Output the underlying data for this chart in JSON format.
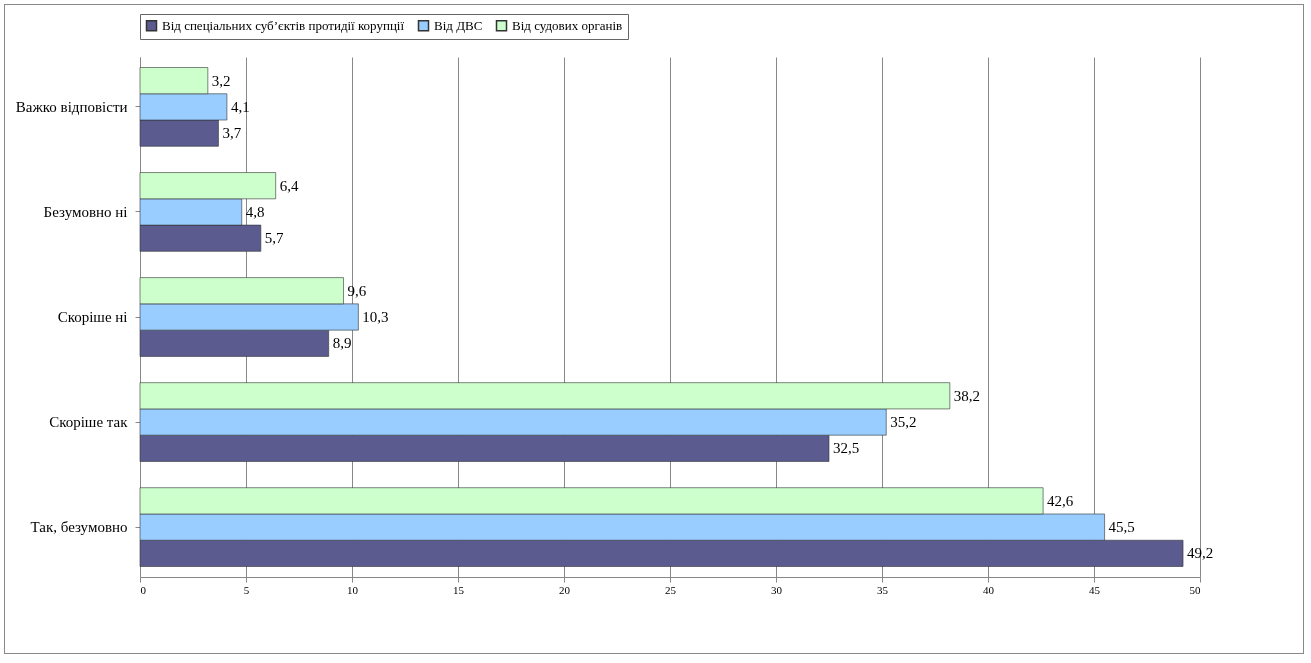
{
  "chart_data": {
    "type": "bar",
    "orientation": "horizontal",
    "categories": [
      "Важко відповісти",
      "Безумовно ні",
      "Скоріше ні",
      "Скоріше так",
      "Так, безумовно"
    ],
    "series": [
      {
        "name": "Від спеціальних суб’єктів протидії корупції",
        "color": "#5b5b8f",
        "values": [
          3.7,
          5.7,
          8.9,
          32.5,
          49.2
        ],
        "value_labels": [
          "3,7",
          "5,7",
          "8,9",
          "32,5",
          "49,2"
        ]
      },
      {
        "name": "Від ДВС",
        "color": "#99ccff",
        "values": [
          4.1,
          4.8,
          10.3,
          35.2,
          45.5
        ],
        "value_labels": [
          "4,1",
          "4,8",
          "10,3",
          "35,2",
          "45,5"
        ]
      },
      {
        "name": "Від судових органів",
        "color": "#ccffcc",
        "values": [
          3.2,
          6.4,
          9.6,
          38.2,
          42.6
        ],
        "value_labels": [
          "3,2",
          "6,4",
          "9,6",
          "38,2",
          "42,6"
        ]
      }
    ],
    "xlim": [
      0,
      50
    ],
    "xticks": [
      0,
      5,
      10,
      15,
      20,
      25,
      30,
      35,
      40,
      45,
      50
    ],
    "grid": "x",
    "legend": "top"
  }
}
